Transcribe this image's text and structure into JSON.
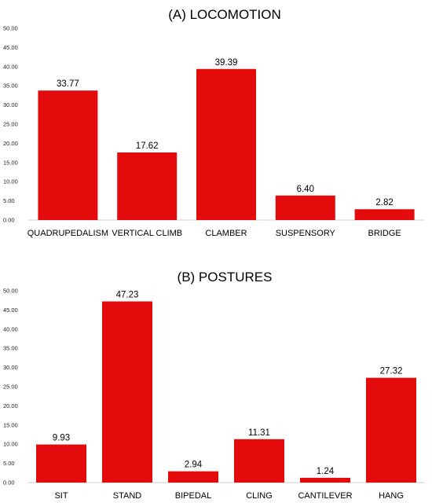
{
  "chart_data": [
    {
      "type": "bar",
      "title": "(A) LOCOMOTION",
      "categories": [
        "QUADRUPEDALISM",
        "VERTICAL CLIMB",
        "CLAMBER",
        "SUSPENSORY",
        "BRIDGE"
      ],
      "values": [
        33.77,
        17.62,
        39.39,
        6.4,
        2.82
      ],
      "value_labels": [
        "33.77",
        "17.62",
        "39.39",
        "6.40",
        "2.82"
      ],
      "ylim": [
        0,
        50
      ],
      "yticks": [
        "0.00",
        "5.00",
        "10.00",
        "15.00",
        "20.00",
        "25.00",
        "30.00",
        "35.00",
        "40.00",
        "45.00",
        "50.00"
      ],
      "xlabel": "",
      "ylabel": "",
      "color": "#e30b0b",
      "grid": false
    },
    {
      "type": "bar",
      "title": "(B) POSTURES",
      "categories": [
        "SIT",
        "STAND",
        "BIPEDAL",
        "CLING",
        "CANTILEVER",
        "HANG"
      ],
      "values": [
        9.93,
        47.23,
        2.94,
        11.31,
        1.24,
        27.32
      ],
      "value_labels": [
        "9.93",
        "47.23",
        "2.94",
        "11.31",
        "1.24",
        "27.32"
      ],
      "ylim": [
        0,
        50
      ],
      "yticks": [
        "0.00",
        "5.00",
        "10.00",
        "15.00",
        "20.00",
        "25.00",
        "30.00",
        "35.00",
        "40.00",
        "45.00",
        "50.00"
      ],
      "xlabel": "",
      "ylabel": "",
      "color": "#e30b0b",
      "grid": false
    }
  ]
}
